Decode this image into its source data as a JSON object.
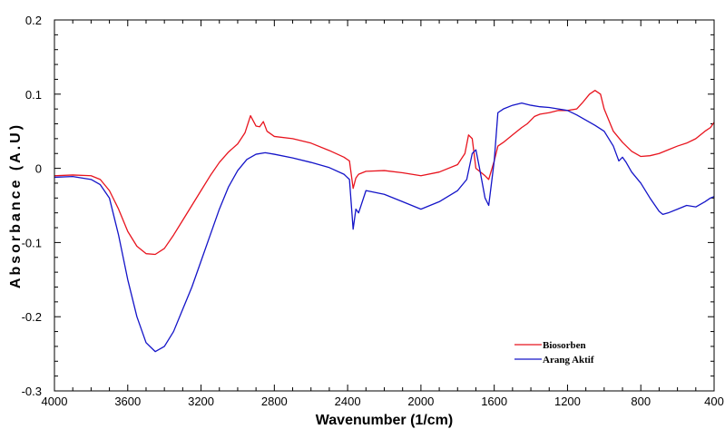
{
  "chart_data": {
    "type": "line",
    "xlabel": "Wavenumber (1/cm)",
    "ylabel": "Absorbance (A.U)",
    "xlim": [
      4000,
      400
    ],
    "ylim": [
      -0.3,
      0.2
    ],
    "x_reversed": true,
    "x_ticks": [
      4000,
      3600,
      3200,
      2800,
      2400,
      2000,
      1600,
      1200,
      800,
      400
    ],
    "x_tick_labels": [
      "4000",
      "3600",
      "3200",
      "2800",
      "2400",
      "2000",
      "1600",
      "1200",
      "800",
      "400"
    ],
    "y_ticks": [
      -0.3,
      -0.2,
      -0.1,
      0,
      0.1,
      0.2
    ],
    "y_tick_labels": [
      "-0.3",
      "-0.2",
      "-0.1",
      "0",
      "0.1",
      "0.2"
    ],
    "grid": false,
    "legend_position": "bottom-right",
    "series": [
      {
        "name": "Biosorben",
        "color": "#e8141e",
        "points": [
          [
            4000,
            -0.01
          ],
          [
            3900,
            -0.009
          ],
          [
            3800,
            -0.01
          ],
          [
            3750,
            -0.015
          ],
          [
            3700,
            -0.03
          ],
          [
            3650,
            -0.055
          ],
          [
            3600,
            -0.085
          ],
          [
            3550,
            -0.105
          ],
          [
            3500,
            -0.115
          ],
          [
            3450,
            -0.116
          ],
          [
            3400,
            -0.108
          ],
          [
            3350,
            -0.09
          ],
          [
            3300,
            -0.07
          ],
          [
            3250,
            -0.05
          ],
          [
            3200,
            -0.03
          ],
          [
            3150,
            -0.01
          ],
          [
            3100,
            0.008
          ],
          [
            3050,
            0.022
          ],
          [
            3000,
            0.033
          ],
          [
            2960,
            0.048
          ],
          [
            2930,
            0.071
          ],
          [
            2900,
            0.057
          ],
          [
            2880,
            0.056
          ],
          [
            2860,
            0.063
          ],
          [
            2840,
            0.05
          ],
          [
            2800,
            0.043
          ],
          [
            2700,
            0.04
          ],
          [
            2600,
            0.034
          ],
          [
            2500,
            0.024
          ],
          [
            2420,
            0.015
          ],
          [
            2390,
            0.01
          ],
          [
            2370,
            -0.027
          ],
          [
            2355,
            -0.013
          ],
          [
            2340,
            -0.008
          ],
          [
            2300,
            -0.004
          ],
          [
            2200,
            -0.003
          ],
          [
            2100,
            -0.006
          ],
          [
            2000,
            -0.01
          ],
          [
            1900,
            -0.005
          ],
          [
            1800,
            0.005
          ],
          [
            1760,
            0.02
          ],
          [
            1740,
            0.045
          ],
          [
            1720,
            0.04
          ],
          [
            1700,
            0.0
          ],
          [
            1650,
            -0.01
          ],
          [
            1630,
            -0.015
          ],
          [
            1600,
            0.01
          ],
          [
            1580,
            0.03
          ],
          [
            1550,
            0.035
          ],
          [
            1500,
            0.045
          ],
          [
            1450,
            0.055
          ],
          [
            1420,
            0.06
          ],
          [
            1380,
            0.07
          ],
          [
            1350,
            0.073
          ],
          [
            1300,
            0.075
          ],
          [
            1250,
            0.078
          ],
          [
            1200,
            0.078
          ],
          [
            1150,
            0.08
          ],
          [
            1120,
            0.088
          ],
          [
            1080,
            0.1
          ],
          [
            1050,
            0.105
          ],
          [
            1020,
            0.1
          ],
          [
            1000,
            0.08
          ],
          [
            950,
            0.05
          ],
          [
            900,
            0.035
          ],
          [
            850,
            0.023
          ],
          [
            800,
            0.016
          ],
          [
            750,
            0.017
          ],
          [
            700,
            0.02
          ],
          [
            650,
            0.025
          ],
          [
            600,
            0.03
          ],
          [
            550,
            0.034
          ],
          [
            500,
            0.04
          ],
          [
            450,
            0.05
          ],
          [
            420,
            0.055
          ],
          [
            400,
            0.062
          ]
        ]
      },
      {
        "name": "Arang Aktif",
        "color": "#1414c8",
        "points": [
          [
            4000,
            -0.012
          ],
          [
            3900,
            -0.011
          ],
          [
            3800,
            -0.015
          ],
          [
            3750,
            -0.022
          ],
          [
            3700,
            -0.04
          ],
          [
            3650,
            -0.09
          ],
          [
            3600,
            -0.15
          ],
          [
            3550,
            -0.2
          ],
          [
            3500,
            -0.235
          ],
          [
            3450,
            -0.247
          ],
          [
            3400,
            -0.24
          ],
          [
            3350,
            -0.22
          ],
          [
            3300,
            -0.19
          ],
          [
            3250,
            -0.16
          ],
          [
            3200,
            -0.125
          ],
          [
            3150,
            -0.09
          ],
          [
            3100,
            -0.055
          ],
          [
            3050,
            -0.025
          ],
          [
            3000,
            -0.003
          ],
          [
            2950,
            0.012
          ],
          [
            2900,
            0.019
          ],
          [
            2850,
            0.021
          ],
          [
            2800,
            0.019
          ],
          [
            2700,
            0.014
          ],
          [
            2600,
            0.008
          ],
          [
            2500,
            0.001
          ],
          [
            2420,
            -0.008
          ],
          [
            2390,
            -0.015
          ],
          [
            2370,
            -0.082
          ],
          [
            2355,
            -0.055
          ],
          [
            2340,
            -0.06
          ],
          [
            2300,
            -0.03
          ],
          [
            2200,
            -0.035
          ],
          [
            2100,
            -0.045
          ],
          [
            2000,
            -0.055
          ],
          [
            1900,
            -0.045
          ],
          [
            1800,
            -0.03
          ],
          [
            1750,
            -0.015
          ],
          [
            1720,
            0.02
          ],
          [
            1700,
            0.025
          ],
          [
            1680,
            0.0
          ],
          [
            1650,
            -0.04
          ],
          [
            1630,
            -0.05
          ],
          [
            1600,
            0.01
          ],
          [
            1580,
            0.075
          ],
          [
            1550,
            0.08
          ],
          [
            1500,
            0.085
          ],
          [
            1450,
            0.088
          ],
          [
            1400,
            0.085
          ],
          [
            1350,
            0.083
          ],
          [
            1300,
            0.082
          ],
          [
            1250,
            0.08
          ],
          [
            1200,
            0.078
          ],
          [
            1150,
            0.072
          ],
          [
            1100,
            0.065
          ],
          [
            1050,
            0.058
          ],
          [
            1000,
            0.05
          ],
          [
            950,
            0.03
          ],
          [
            920,
            0.01
          ],
          [
            900,
            0.015
          ],
          [
            880,
            0.008
          ],
          [
            850,
            -0.005
          ],
          [
            800,
            -0.02
          ],
          [
            750,
            -0.04
          ],
          [
            700,
            -0.058
          ],
          [
            680,
            -0.062
          ],
          [
            650,
            -0.06
          ],
          [
            600,
            -0.055
          ],
          [
            550,
            -0.05
          ],
          [
            500,
            -0.052
          ],
          [
            450,
            -0.045
          ],
          [
            420,
            -0.04
          ],
          [
            400,
            -0.038
          ]
        ]
      }
    ]
  }
}
